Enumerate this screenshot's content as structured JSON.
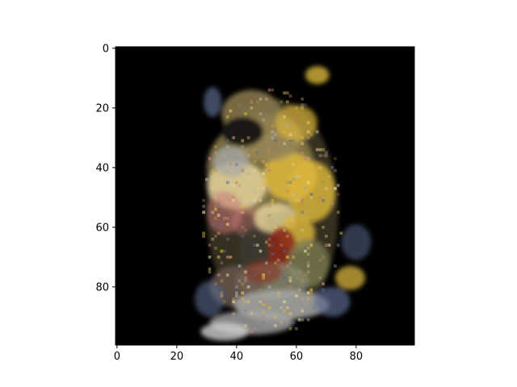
{
  "chart_data": {
    "type": "heatmap",
    "title": "",
    "xlabel": "",
    "ylabel": "",
    "image_shape": [
      100,
      100
    ],
    "xlim": [
      -0.5,
      99.5
    ],
    "ylim": [
      99.5,
      -0.5
    ],
    "x_ticks": [
      0,
      20,
      40,
      60,
      80
    ],
    "y_ticks": [
      0,
      20,
      40,
      60,
      80
    ],
    "grid": false,
    "legend": "none",
    "colors": {
      "background": "#000000",
      "gold": "#d8b43c",
      "pale_yellow": "#e8d8a0",
      "silver": "#a8a8a8",
      "blue_grey": "#5a6a8c",
      "rust": "#8a2a1c",
      "pink": "#c87878"
    }
  }
}
